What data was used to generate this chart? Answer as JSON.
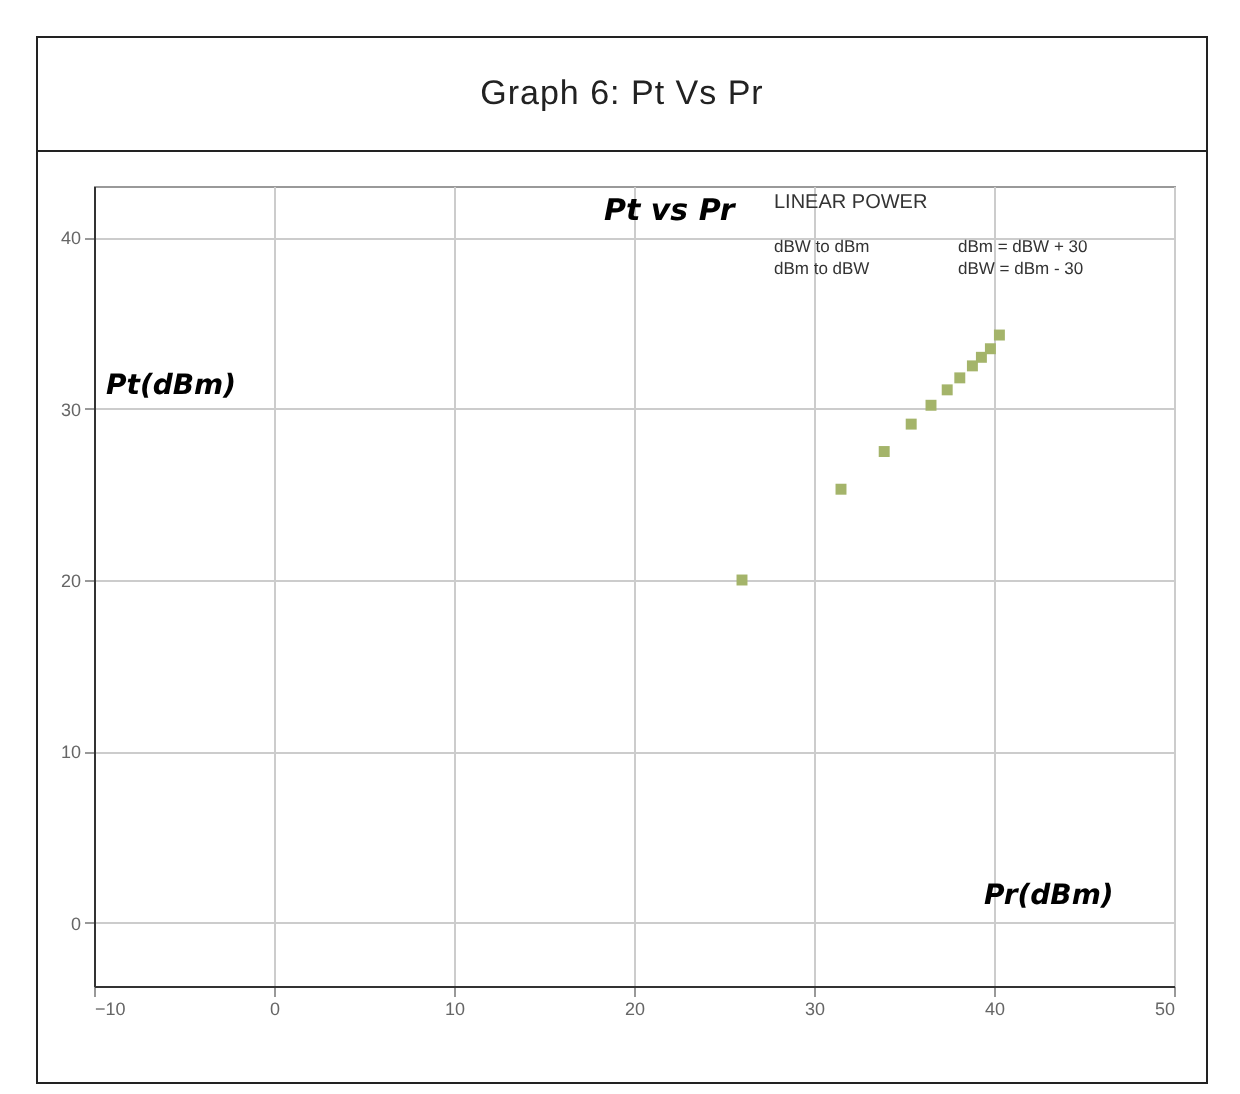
{
  "chart_data": {
    "type": "scatter",
    "title": "Graph 6: Pt Vs Pr",
    "subtitle": "Pt vs Pr",
    "xlabel": "Pr(dBm)",
    "ylabel": "Pt(dBm)",
    "annotations": [
      "LINEAR POWER",
      "dBW to dBm",
      "dBm to dBW",
      "dBm = dBW + 30",
      "dBW = dBm - 30"
    ],
    "x": [
      26.0,
      31.5,
      33.9,
      35.4,
      36.5,
      37.4,
      38.1,
      38.8,
      39.3,
      39.8,
      40.3
    ],
    "series": [
      {
        "color": "#a4b46a",
        "values": [
          20.0,
          25.3,
          27.5,
          29.1,
          30.2,
          31.1,
          31.8,
          32.5,
          33.0,
          33.5,
          34.3
        ]
      }
    ],
    "xlim": [
      -10,
      50
    ],
    "xticks": [
      -10,
      0,
      10,
      20,
      30,
      40,
      50
    ],
    "ylim": [
      -3.7,
      43
    ],
    "yticks": [
      0,
      10,
      20,
      30,
      40
    ],
    "grid": true,
    "marker": "square"
  }
}
